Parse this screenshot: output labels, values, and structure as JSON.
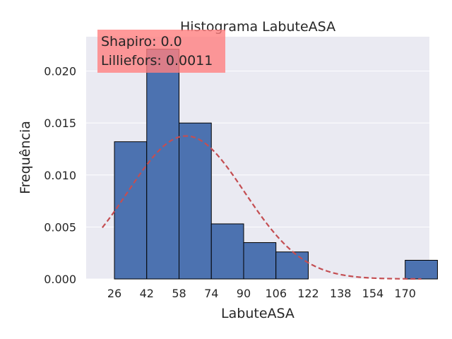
{
  "chart_data": {
    "type": "bar",
    "title": "Histograma LabuteASA",
    "xlabel": "LabuteASA",
    "ylabel": "Frequência",
    "xlim": [
      12,
      182
    ],
    "ylim": [
      0,
      0.0233
    ],
    "xticks": [
      26,
      42,
      58,
      74,
      90,
      106,
      122,
      138,
      154,
      170
    ],
    "yticks": [
      "0.000",
      "0.005",
      "0.010",
      "0.015",
      "0.020"
    ],
    "yticks_values": [
      0,
      0.005,
      0.01,
      0.015,
      0.02
    ],
    "bin_width": 16,
    "bins": [
      {
        "start": 26,
        "end": 42,
        "value": 0.0132
      },
      {
        "start": 42,
        "end": 58,
        "value": 0.0221
      },
      {
        "start": 58,
        "end": 74,
        "value": 0.015
      },
      {
        "start": 74,
        "end": 90,
        "value": 0.0053
      },
      {
        "start": 90,
        "end": 106,
        "value": 0.0035
      },
      {
        "start": 106,
        "end": 122,
        "value": 0.0026
      },
      {
        "start": 122,
        "end": 138,
        "value": 0
      },
      {
        "start": 138,
        "end": 154,
        "value": 0
      },
      {
        "start": 154,
        "end": 170,
        "value": 0
      },
      {
        "start": 170,
        "end": 186,
        "value": 0.0018
      }
    ],
    "normal_curve": {
      "mean": 61.5,
      "std": 29,
      "x_range": [
        20,
        178
      ],
      "color": "#c44e52"
    },
    "bar_color": "#4c72b0",
    "background_color": "#eaeaf2",
    "grid": "horizontal",
    "annotation": {
      "lines": [
        "Shapiro: 0.0",
        "Lilliefors: 0.0011"
      ],
      "color": "#ff7f7f",
      "placement": "top-left"
    }
  }
}
